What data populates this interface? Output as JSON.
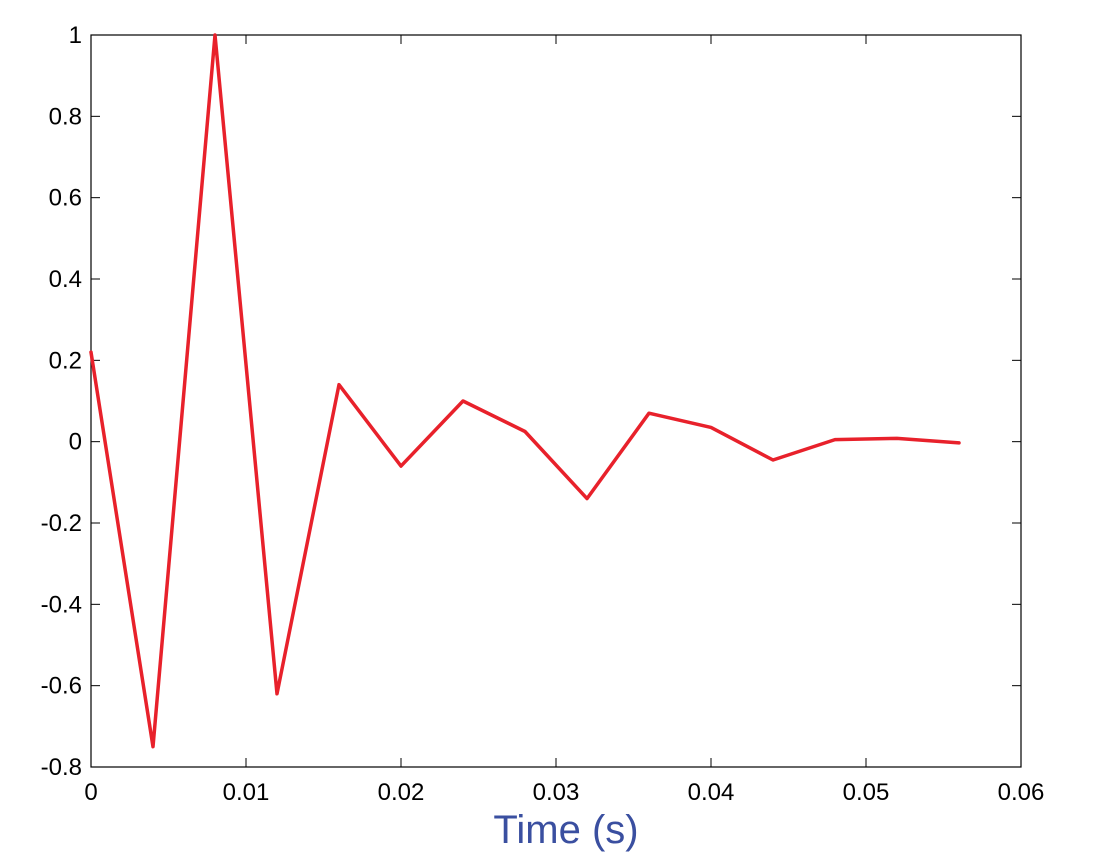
{
  "chart_data": {
    "type": "line",
    "title": "",
    "xlabel": "Time (s)",
    "ylabel": "",
    "xlim": [
      0,
      0.06
    ],
    "ylim": [
      -0.8,
      1
    ],
    "x_ticks": [
      {
        "value": 0,
        "label": "0"
      },
      {
        "value": 0.01,
        "label": "0.01"
      },
      {
        "value": 0.02,
        "label": "0.02"
      },
      {
        "value": 0.03,
        "label": "0.03"
      },
      {
        "value": 0.04,
        "label": "0.04"
      },
      {
        "value": 0.05,
        "label": "0.05"
      },
      {
        "value": 0.06,
        "label": "0.06"
      }
    ],
    "y_ticks": [
      {
        "value": 1,
        "label": "1"
      },
      {
        "value": 0.8,
        "label": "0.8"
      },
      {
        "value": 0.6,
        "label": "0.6"
      },
      {
        "value": 0.4,
        "label": "0.4"
      },
      {
        "value": 0.2,
        "label": "0.2"
      },
      {
        "value": 0,
        "label": "0"
      },
      {
        "value": -0.2,
        "label": "-0.2"
      },
      {
        "value": -0.4,
        "label": "-0.4"
      },
      {
        "value": -0.6,
        "label": "-0.6"
      },
      {
        "value": -0.8,
        "label": "-0.8"
      }
    ],
    "grid": false,
    "xlabel_color": "#3a4fa0",
    "series": [
      {
        "color": "#e8212b",
        "x": [
          0,
          0.004,
          0.008,
          0.012,
          0.016,
          0.02,
          0.024,
          0.028,
          0.032,
          0.036,
          0.04,
          0.044,
          0.048,
          0.052,
          0.056
        ],
        "y": [
          0.22,
          -0.75,
          1.0,
          -0.62,
          0.14,
          -0.06,
          0.1,
          0.025,
          -0.14,
          0.07,
          0.035,
          -0.045,
          0.005,
          0.008,
          -0.003
        ]
      }
    ]
  }
}
